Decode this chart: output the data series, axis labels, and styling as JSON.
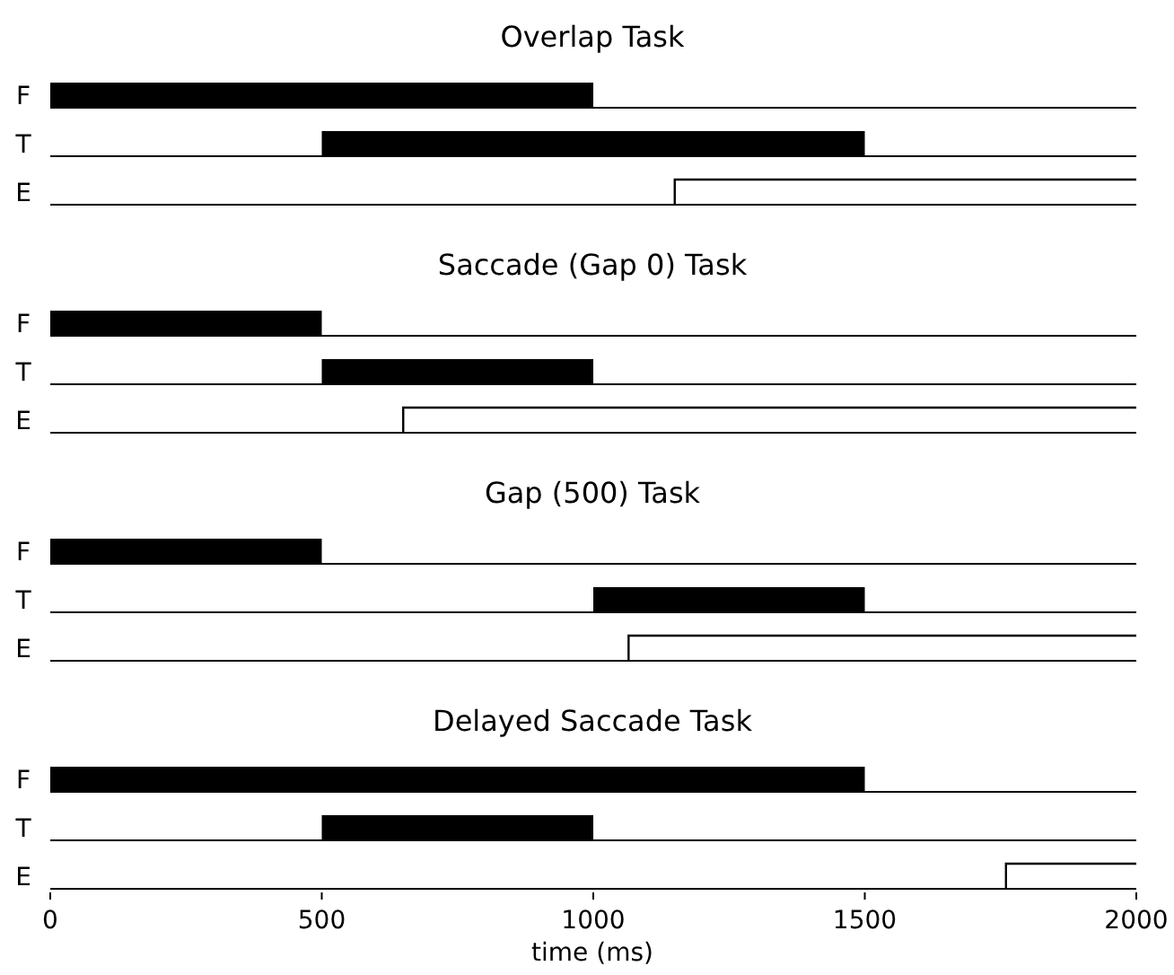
{
  "chart_data": [
    {
      "type": "bar",
      "orientation": "horizontal",
      "title": "Overlap Task",
      "categories": [
        "F",
        "T",
        "E"
      ],
      "xlim": [
        0,
        2000
      ],
      "tick_labels": "y",
      "grid": "y",
      "series": [
        {
          "color": "#000000",
          "values": [
            1000,
            1000,
            850
          ],
          "base": [
            0,
            500,
            1150
          ]
        }
      ]
    },
    {
      "type": "bar",
      "orientation": "horizontal",
      "title": "Saccade (Gap 0) Task",
      "categories": [
        "F",
        "T",
        "E"
      ],
      "xlim": [
        0,
        2000
      ],
      "tick_labels": "y",
      "grid": "y",
      "series": [
        {
          "color": "#000000",
          "values": [
            500,
            500,
            1350
          ],
          "base": [
            0,
            500,
            650
          ]
        }
      ]
    },
    {
      "type": "bar",
      "orientation": "horizontal",
      "title": "Gap (500) Task",
      "categories": [
        "F",
        "T",
        "E"
      ],
      "xlim": [
        0,
        2000
      ],
      "tick_labels": "y",
      "grid": "y",
      "series": [
        {
          "color": "#000000",
          "values": [
            500,
            500,
            935
          ],
          "base": [
            0,
            1000,
            1065
          ]
        }
      ]
    },
    {
      "type": "bar",
      "orientation": "horizontal",
      "title": "Delayed Saccade Task",
      "categories": [
        "F",
        "T",
        "E"
      ],
      "xlim": [
        0,
        2000
      ],
      "xticks": [
        0,
        500,
        1000,
        1500,
        2000
      ],
      "xlabel": "time (ms)",
      "grid": "y",
      "series": [
        {
          "color": "#000000",
          "values": [
            1500,
            500,
            240
          ],
          "base": [
            0,
            500,
            1760
          ]
        }
      ]
    }
  ]
}
